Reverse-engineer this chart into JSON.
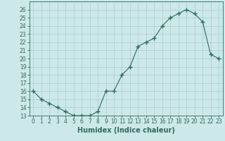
{
  "x": [
    0,
    1,
    2,
    3,
    4,
    5,
    6,
    7,
    8,
    9,
    10,
    11,
    12,
    13,
    14,
    15,
    16,
    17,
    18,
    19,
    20,
    21,
    22,
    23
  ],
  "y": [
    16,
    15,
    14.5,
    14,
    13.5,
    13,
    13,
    13,
    13.5,
    16,
    16,
    18,
    19,
    21.5,
    22,
    22.5,
    24,
    25,
    25.5,
    26,
    25.5,
    24.5,
    20.5,
    20
  ],
  "xlabel": "Humidex (Indice chaleur)",
  "ylabel": "",
  "ylim": [
    13,
    27
  ],
  "xlim": [
    -0.5,
    23.5
  ],
  "yticks": [
    13,
    14,
    15,
    16,
    17,
    18,
    19,
    20,
    21,
    22,
    23,
    24,
    25,
    26
  ],
  "xticks": [
    0,
    1,
    2,
    3,
    4,
    5,
    6,
    7,
    8,
    9,
    10,
    11,
    12,
    13,
    14,
    15,
    16,
    17,
    18,
    19,
    20,
    21,
    22,
    23
  ],
  "xtick_labels": [
    "0",
    "1",
    "2",
    "3",
    "4",
    "5",
    "6",
    "7",
    "8",
    "9",
    "10",
    "11",
    "12",
    "13",
    "14",
    "15",
    "16",
    "17",
    "18",
    "19",
    "20",
    "21",
    "22",
    "23"
  ],
  "line_color": "#2e6b5e",
  "marker": "+",
  "marker_size": 4,
  "background_color": "#cce8e8",
  "grid_color": "#aacccc",
  "label_fontsize": 7,
  "tick_fontsize": 5.5
}
